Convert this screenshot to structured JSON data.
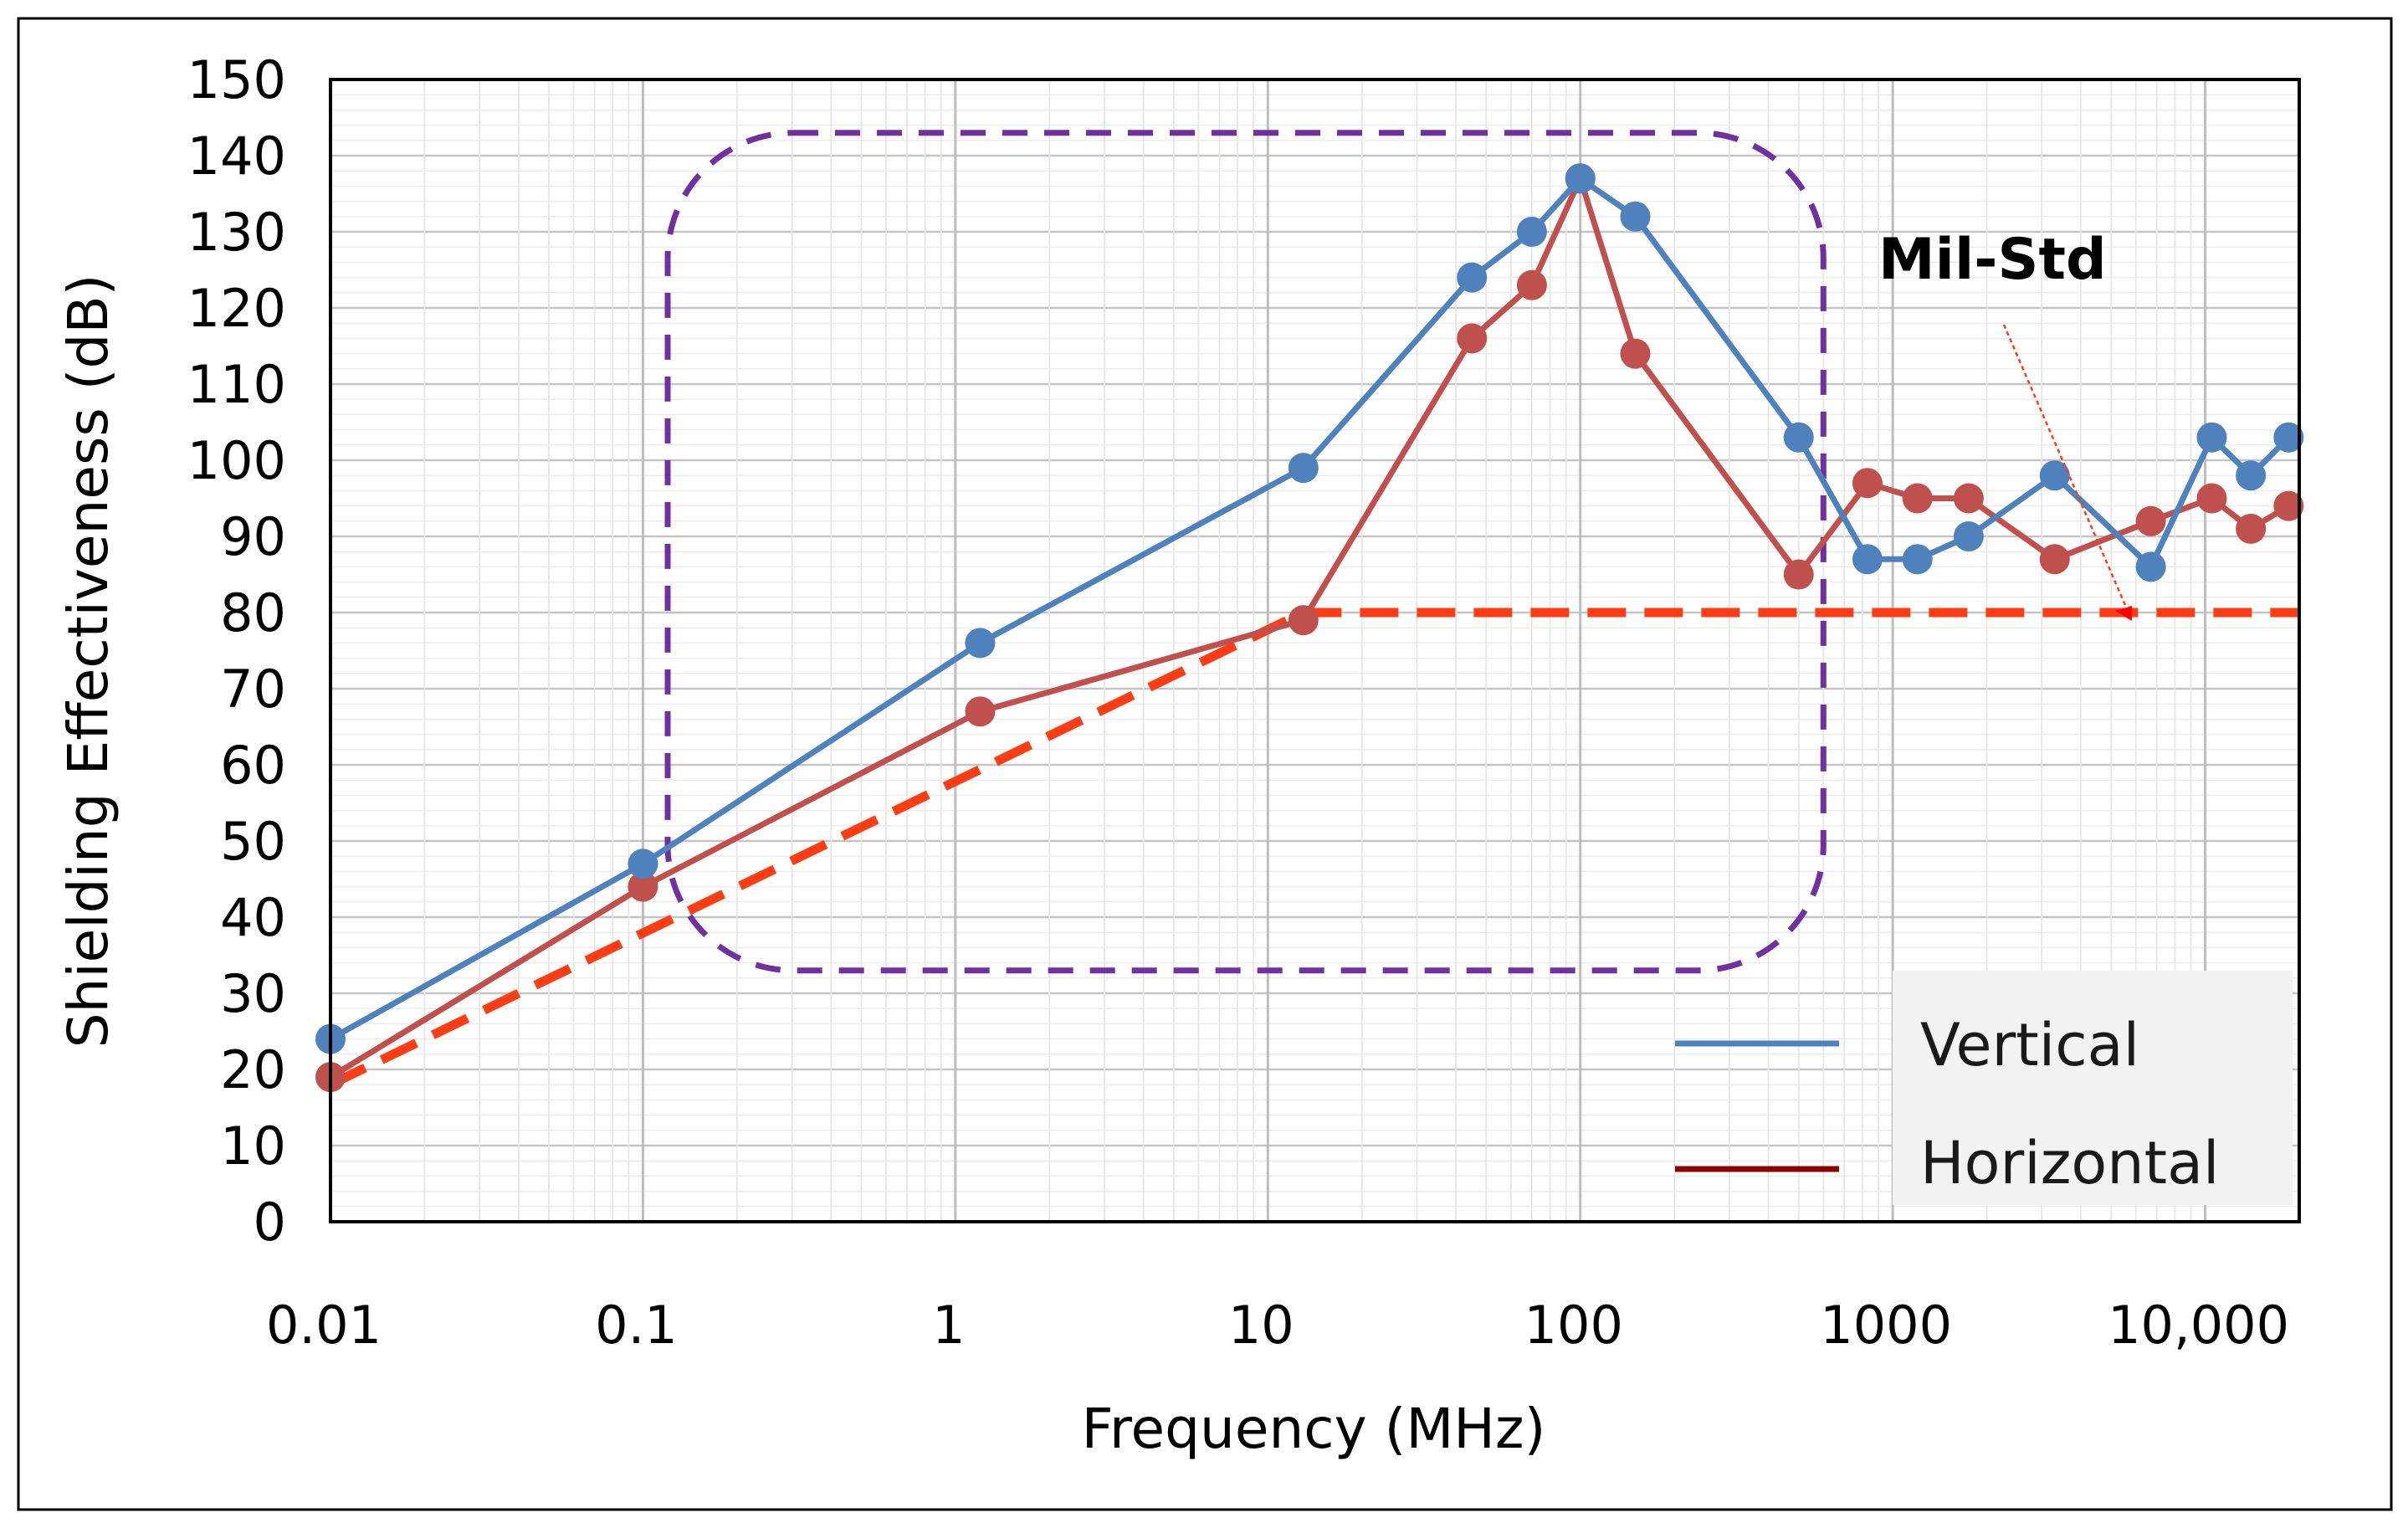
{
  "chart_data": {
    "type": "line",
    "title": "",
    "xlabel": "Frequency (MHz)",
    "ylabel": "Shielding Effectiveness (dB)",
    "x_scale": "log",
    "xlim": [
      0.01,
      20000
    ],
    "ylim": [
      0,
      150
    ],
    "y_ticks": [
      "0",
      "10",
      "20",
      "30",
      "40",
      "50",
      "60",
      "70",
      "80",
      "90",
      "100",
      "110",
      "120",
      "130",
      "140",
      "150"
    ],
    "x_ticks": [
      {
        "value": 0.01,
        "label": "0.01"
      },
      {
        "value": 0.1,
        "label": "0.1"
      },
      {
        "value": 1,
        "label": "1"
      },
      {
        "value": 10,
        "label": "10"
      },
      {
        "value": 100,
        "label": "100"
      },
      {
        "value": 1000,
        "label": "1000"
      },
      {
        "value": 10000,
        "label": "10,000"
      }
    ],
    "grid": true,
    "legend_position": "bottom-right",
    "series": [
      {
        "name": "Vertical",
        "color": "#4f81bd",
        "style": "solid-markers",
        "x": [
          0.01,
          0.1,
          1.2,
          13,
          45,
          70,
          100,
          150,
          500,
          830,
          1200,
          1750,
          3300,
          6700,
          10500,
          14000,
          18500
        ],
        "y": [
          24,
          47,
          76,
          99,
          124,
          130,
          137,
          132,
          103,
          87,
          87,
          90,
          98,
          86,
          103,
          98,
          103
        ]
      },
      {
        "name": "Horizontal",
        "color": "#c0504d",
        "legend_color": "#8b0000",
        "style": "solid-markers",
        "x": [
          0.01,
          0.1,
          1.2,
          13,
          45,
          70,
          100,
          150,
          500,
          830,
          1200,
          1750,
          3300,
          6700,
          10500,
          14000,
          18500
        ],
        "y": [
          19,
          44,
          67,
          79,
          116,
          123,
          137,
          114,
          85,
          97,
          95,
          95,
          87,
          92,
          95,
          91,
          94
        ]
      },
      {
        "name": "Mil-Std",
        "color": "#ff3d14",
        "style": "dashed",
        "x": [
          0.01,
          13,
          20000
        ],
        "y": [
          18,
          80,
          80
        ]
      }
    ],
    "annotations": [
      {
        "text": "Mil-Std",
        "type": "callout-arrow",
        "points_to_series": "Mil-Std"
      },
      {
        "type": "dashed-rounded-box",
        "color": "#7030a0",
        "x_range": [
          0.12,
          600
        ],
        "y_range": [
          33,
          143
        ]
      }
    ]
  }
}
